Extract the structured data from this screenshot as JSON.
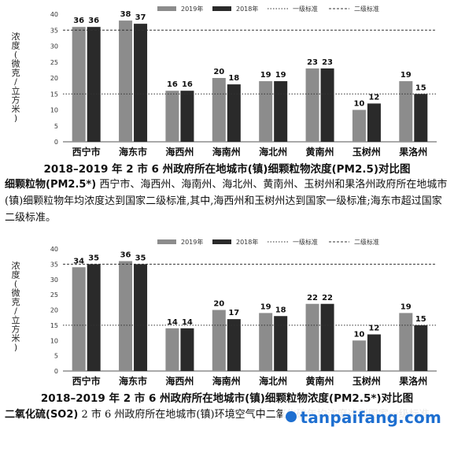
{
  "chart_data": [
    {
      "type": "bar",
      "title": "2018–2019 年 2 市 6 州政府所在地城市(镇)细颗粒物浓度(PM2.5)对比图",
      "ylabel": "浓度(微克/立方米)",
      "ylim": [
        0,
        40
      ],
      "yticks": [
        0,
        5,
        10,
        15,
        20,
        25,
        30,
        35,
        40
      ],
      "categories": [
        "西宁市",
        "海东市",
        "海西州",
        "海南州",
        "海北州",
        "黄南州",
        "玉树州",
        "果洛州"
      ],
      "series": [
        {
          "name": "2019年",
          "color": "#8c8c8c",
          "values": [
            36,
            38,
            16,
            20,
            19,
            23,
            10,
            19
          ]
        },
        {
          "name": "2018年",
          "color": "#2a2a2a",
          "values": [
            36,
            37,
            16,
            18,
            19,
            23,
            12,
            15
          ]
        }
      ],
      "reference_lines": [
        {
          "name": "一级标准",
          "value": 15
        },
        {
          "name": "二级标准",
          "value": 35
        }
      ],
      "legend": "top",
      "grid": false
    },
    {
      "type": "bar",
      "title": "2018–2019 年 2 市 6 州政府所在地城市(镇)细颗粒物浓度(PM2.5*)对比图",
      "ylabel": "浓度(微克/立方米)",
      "ylim": [
        0,
        40
      ],
      "yticks": [
        0,
        5,
        10,
        15,
        20,
        25,
        30,
        35,
        40
      ],
      "categories": [
        "西宁市",
        "海东市",
        "海西州",
        "海南州",
        "海北州",
        "黄南州",
        "玉树州",
        "果洛州"
      ],
      "series": [
        {
          "name": "2019年",
          "color": "#8c8c8c",
          "values": [
            34,
            36,
            14,
            20,
            19,
            22,
            10,
            19
          ]
        },
        {
          "name": "2018年",
          "color": "#2a2a2a",
          "values": [
            35,
            35,
            14,
            17,
            18,
            22,
            12,
            15
          ]
        }
      ],
      "reference_lines": [
        {
          "name": "一级标准",
          "value": 15
        },
        {
          "name": "二级标准",
          "value": 35
        }
      ],
      "legend": "top",
      "grid": false
    }
  ],
  "captions": {
    "chart1": "2018–2019 年 2 市 6 州政府所在地城市(镇)细颗粒物浓度(PM2.5)对比图",
    "chart2": "2018–2019 年 2 市 6 州政府所在地城市(镇)细颗粒物浓度(PM2.5*)对比图"
  },
  "paragraphs": {
    "pm25_lead": "细颗粒物(PM2.5*)",
    "pm25_body": "西宁市、海西州、海南州、海北州、黄南州、玉树州和果洛州政府所在地城市(镇)细颗粒物年均浓度达到国家二级标准,其中,海西州和玉树州达到国家一级标准;海东市超过国家二级标准。",
    "so2_lead": "二氧化硫(SO2)",
    "so2_body": "2 市 6 州政府所在地城市(镇)环境空气中二氧化硫年均浓度达到国家一级标准。"
  },
  "watermark": {
    "text": "tanpaifang.com",
    "color": "#1e6fd0"
  }
}
